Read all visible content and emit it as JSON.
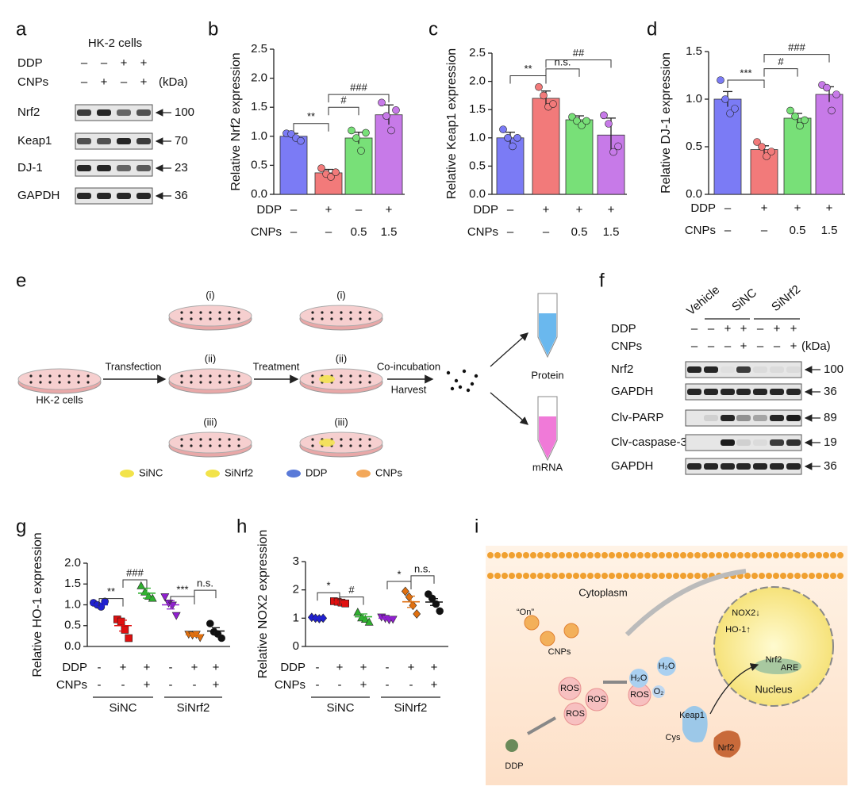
{
  "panel_letters": [
    "a",
    "b",
    "c",
    "d",
    "e",
    "f",
    "g",
    "h",
    "i"
  ],
  "blot_a": {
    "title": "HK-2 cells",
    "unit": "(kDa)",
    "conditions": [
      {
        "name": "DDP",
        "labels": [
          "–",
          "–",
          "+",
          "+"
        ]
      },
      {
        "name": "CNPs",
        "labels": [
          "–",
          "+",
          "–",
          "+"
        ]
      }
    ],
    "bands": [
      {
        "name": "Nrf2",
        "size": 100
      },
      {
        "name": "Keap1",
        "size": 70
      },
      {
        "name": "DJ-1",
        "size": 23
      },
      {
        "name": "GAPDH",
        "size": 36
      }
    ]
  },
  "chart_data": [
    {
      "type": "bar",
      "ylabel": "Relative Nrf2 expression",
      "ylim": [
        0,
        2.5
      ],
      "yticks": [
        {
          "value": 0,
          "label": "0.0"
        },
        0.5,
        {
          "value": 1,
          "label": "1.0"
        },
        1.5,
        {
          "value": 2,
          "label": "2.0"
        },
        2.5
      ],
      "rows": [
        {
          "name": "DDP",
          "labels": [
            "–",
            "+",
            "–",
            "+"
          ]
        },
        {
          "name": "CNPs",
          "labels": [
            "–",
            "–",
            "0.5",
            "1.5"
          ]
        }
      ],
      "colors": [
        "#7b7bf5",
        "#f27a7a",
        "#78e078",
        "#c77ae8"
      ],
      "values": [
        1.0,
        0.37,
        0.97,
        1.37
      ],
      "errors": [
        0.05,
        0.06,
        0.1,
        0.17
      ],
      "points": [
        [
          1.05,
          1.04,
          0.97,
          0.92
        ],
        [
          0.45,
          0.35,
          0.3,
          0.38
        ],
        [
          1.1,
          0.97,
          0.75,
          1.06
        ],
        [
          1.58,
          1.35,
          1.1,
          1.45
        ]
      ],
      "annotations": [
        "**",
        "#",
        "###"
      ]
    },
    {
      "type": "bar",
      "ylabel": "Relative Keap1 expression",
      "ylim": [
        0,
        2.5
      ],
      "yticks": [
        {
          "value": 0,
          "label": "0.0"
        },
        0.5,
        {
          "value": 1,
          "label": "1.0"
        },
        1.5,
        {
          "value": 2,
          "label": "2.0"
        },
        2.5
      ],
      "rows": [
        {
          "name": "DDP",
          "labels": [
            "–",
            "+",
            "+",
            "+"
          ]
        },
        {
          "name": "CNPs",
          "labels": [
            "–",
            "–",
            "0.5",
            "1.5"
          ]
        }
      ],
      "colors": [
        "#7b7bf5",
        "#f27a7a",
        "#78e078",
        "#c77ae8"
      ],
      "values": [
        1.0,
        1.7,
        1.32,
        1.05
      ],
      "errors": [
        0.1,
        0.13,
        0.07,
        0.3
      ],
      "points": [
        [
          1.15,
          1.0,
          0.85,
          1.0
        ],
        [
          1.9,
          1.75,
          1.55,
          1.6
        ],
        [
          1.37,
          1.3,
          1.22,
          1.3
        ],
        [
          1.4,
          1.25,
          0.75,
          0.85
        ]
      ],
      "annotations": [
        "**",
        "n.s.",
        "##"
      ]
    },
    {
      "type": "bar",
      "ylabel": "Relative DJ-1 expression",
      "ylim": [
        0,
        1.5
      ],
      "yticks": [
        {
          "value": 0,
          "label": "0.0"
        },
        0.5,
        {
          "value": 1,
          "label": "1.0"
        },
        1.5
      ],
      "rows": [
        {
          "name": "DDP",
          "labels": [
            "–",
            "+",
            "+",
            "+"
          ]
        },
        {
          "name": "CNPs",
          "labels": [
            "–",
            "–",
            "0.5",
            "1.5"
          ]
        }
      ],
      "colors": [
        "#7b7bf5",
        "#f27a7a",
        "#78e078",
        "#c77ae8"
      ],
      "values": [
        1.0,
        0.47,
        0.8,
        1.05
      ],
      "errors": [
        0.08,
        0.04,
        0.05,
        0.08
      ],
      "points": [
        [
          1.2,
          1.0,
          0.85,
          0.9
        ],
        [
          0.55,
          0.5,
          0.4,
          0.45
        ],
        [
          0.88,
          0.82,
          0.72,
          0.78
        ],
        [
          1.15,
          1.12,
          0.88,
          1.05
        ]
      ],
      "annotations": [
        "***",
        "#",
        "###"
      ]
    },
    {
      "type": "dot",
      "ylabel": "Relative HO-1 expression",
      "ylim": [
        0,
        2
      ],
      "yticks": [
        {
          "value": 0,
          "label": "0.0"
        },
        0.5,
        {
          "value": 1,
          "label": "1.0"
        },
        1.5,
        {
          "value": 2,
          "label": "2.0"
        }
      ],
      "rows": [
        {
          "name": "DDP",
          "labels": [
            "-",
            "+",
            "+",
            "-",
            "+",
            "+"
          ]
        },
        {
          "name": "CNPs",
          "labels": [
            "-",
            "-",
            "+",
            "-",
            "-",
            "+"
          ]
        }
      ],
      "groups": [
        "SiNC",
        "SiNrf2"
      ],
      "colors": [
        "#2020d0",
        "#e01010",
        "#30b030",
        "#9020d0",
        "#e07010",
        "#111111"
      ],
      "markers": [
        "circle",
        "square",
        "triangle",
        "triangle-down",
        "triangle-down",
        "circle"
      ],
      "values": [
        1.0,
        0.5,
        1.28,
        1.0,
        0.28,
        0.37
      ],
      "errors": [
        0.04,
        0.13,
        0.12,
        0.1,
        0.04,
        0.08
      ],
      "points": [
        [
          1.05,
          1.0,
          0.95,
          1.08
        ],
        [
          0.65,
          0.6,
          0.4,
          0.2
        ],
        [
          1.45,
          1.3,
          1.2,
          1.15
        ],
        [
          1.2,
          1.05,
          1.0,
          0.75
        ],
        [
          0.3,
          0.28,
          0.3,
          0.22
        ],
        [
          0.55,
          0.35,
          0.3,
          0.2
        ]
      ],
      "annotations": [
        "**",
        "###",
        "***",
        "n.s."
      ]
    },
    {
      "type": "dot",
      "ylabel": "Relative NOX2 expression",
      "ylim": [
        0,
        3
      ],
      "yticks": [
        0,
        1,
        2,
        3
      ],
      "rows": [
        {
          "name": "DDP",
          "labels": [
            "-",
            "+",
            "+",
            "-",
            "+",
            "+"
          ]
        },
        {
          "name": "CNPs",
          "labels": [
            "-",
            "-",
            "+",
            "-",
            "-",
            "+"
          ]
        }
      ],
      "groups": [
        "SiNC",
        "SiNrf2"
      ],
      "colors": [
        "#2020d0",
        "#e01010",
        "#30b030",
        "#9020d0",
        "#e07010",
        "#111111"
      ],
      "markers": [
        "diamond",
        "square",
        "triangle",
        "triangle-down",
        "diamond",
        "circle"
      ],
      "values": [
        1.0,
        1.57,
        1.05,
        1.0,
        1.58,
        1.57
      ],
      "errors": [
        0.03,
        0.03,
        0.1,
        0.05,
        0.2,
        0.12
      ],
      "points": [
        [
          1.03,
          1.0,
          0.98,
          1.0
        ],
        [
          1.6,
          1.58,
          1.55,
          1.52
        ],
        [
          1.2,
          1.0,
          0.95,
          0.85
        ],
        [
          1.05,
          1.0,
          0.95,
          0.97
        ],
        [
          1.95,
          1.75,
          1.45,
          1.15
        ],
        [
          1.85,
          1.7,
          1.5,
          1.25
        ]
      ],
      "annotations": [
        "*",
        "#",
        "*",
        "n.s."
      ]
    }
  ],
  "diagram_e": {
    "start": "HK-2 cells",
    "steps": [
      "Transfection",
      "Treatment",
      "Co-incubation",
      "Harvest"
    ],
    "dish_labels": [
      "(i)",
      "(ii)",
      "(iii)",
      "(i)",
      "(ii)",
      "(iii)"
    ],
    "outputs": [
      "Protein",
      "mRNA"
    ],
    "legend": [
      "SiNC",
      "SiNrf2",
      "DDP",
      "CNPs"
    ]
  },
  "blot_f": {
    "groups": [
      "Vehicle",
      "SiNC",
      "SiNrf2"
    ],
    "unit": "(kDa)",
    "conditions": [
      {
        "name": "DDP",
        "labels": [
          "–",
          "–",
          "+",
          "+",
          "–",
          "+",
          "+"
        ]
      },
      {
        "name": "CNPs",
        "labels": [
          "–",
          "–",
          "–",
          "+",
          "–",
          "–",
          "+"
        ]
      }
    ],
    "bands": [
      {
        "name": "Nrf2",
        "size": 100
      },
      {
        "name": "GAPDH",
        "size": 36
      },
      {
        "name": "Clv-PARP",
        "size": 89
      },
      {
        "name": "Clv-caspase-3",
        "size": 19
      },
      {
        "name": "GAPDH",
        "size": 36
      }
    ]
  },
  "diagram_i": {
    "labels": [
      "Cytoplasm",
      "“On”",
      "CNPs",
      "ROS",
      "ROS",
      "ROS",
      "ROS",
      "H₂O",
      "H₂O",
      "O₂",
      "Keap1",
      "Cys",
      "Nrf2",
      "DDP",
      "NOX2↓",
      "HO-1↑",
      "Nrf2",
      "ARE",
      "Nucleus"
    ]
  }
}
